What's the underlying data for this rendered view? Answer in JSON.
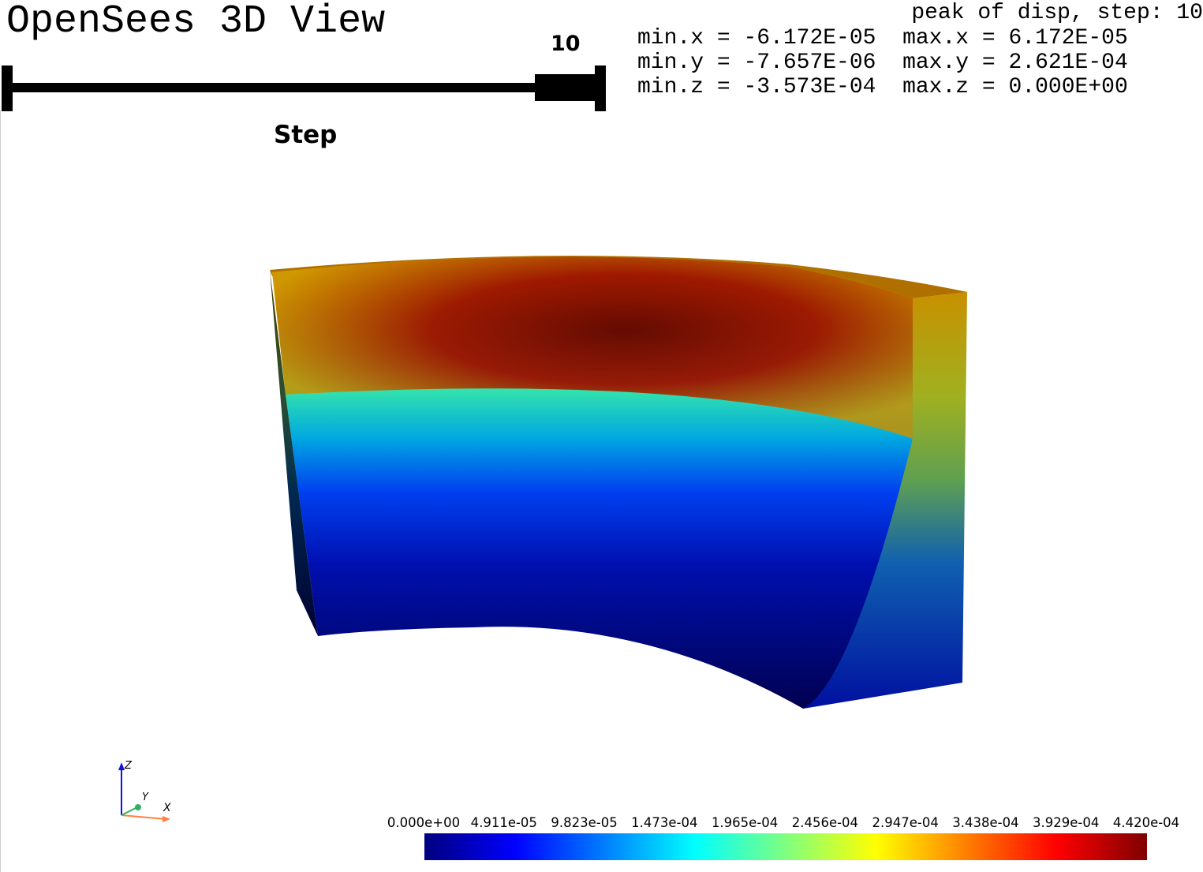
{
  "window": {
    "title": "OpenSees 3D View"
  },
  "info": {
    "header": "peak of disp, step: 10",
    "rows": [
      {
        "min_label": "min.x",
        "min_value": "-6.172E-05",
        "max_label": "max.x",
        "max_value": "6.172E-05"
      },
      {
        "min_label": "min.y",
        "min_value": "-7.657E-06",
        "max_label": "max.y",
        "max_value": "2.621E-04"
      },
      {
        "min_label": "min.z",
        "min_value": "-3.573E-04",
        "max_label": "max.z",
        "max_value": "0.000E+00"
      }
    ]
  },
  "step_slider": {
    "label": "Step",
    "value": "10",
    "fraction": 1.0
  },
  "colorbar": {
    "ticks": [
      "0.000e+00",
      "4.911e-05",
      "9.823e-05",
      "1.473e-04",
      "1.965e-04",
      "2.456e-04",
      "2.947e-04",
      "3.438e-04",
      "3.929e-04",
      "4.420e-04"
    ],
    "colors": [
      "#00007f",
      "#0000ff",
      "#007fff",
      "#00ffff",
      "#7fff7f",
      "#ffff00",
      "#ff7f00",
      "#ff0000",
      "#7f0000"
    ]
  },
  "axes": {
    "z": "Z",
    "y": "Y",
    "x": "X"
  },
  "icons": {
    "orientation": "axes-orientation-icon"
  }
}
